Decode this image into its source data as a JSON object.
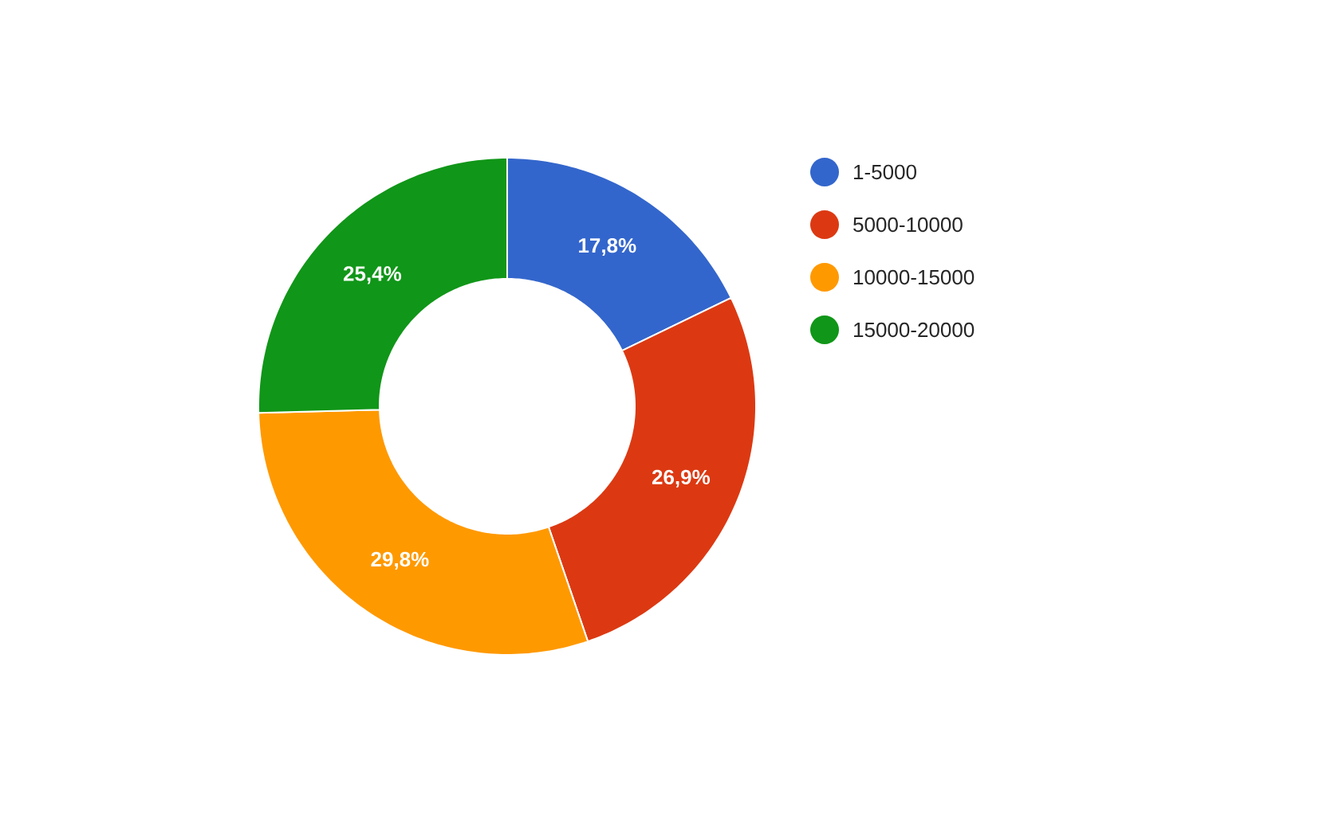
{
  "chart_data": {
    "type": "donut",
    "categories": [
      "1-5000",
      "5000-10000",
      "10000-15000",
      "15000-20000"
    ],
    "values": [
      17.8,
      26.9,
      29.8,
      25.4
    ],
    "value_labels": [
      "17,8%",
      "26,9%",
      "29,8%",
      "25,4%"
    ],
    "colors": [
      "#3366cc",
      "#dc3912",
      "#ff9900",
      "#109618"
    ],
    "legend": "right"
  }
}
